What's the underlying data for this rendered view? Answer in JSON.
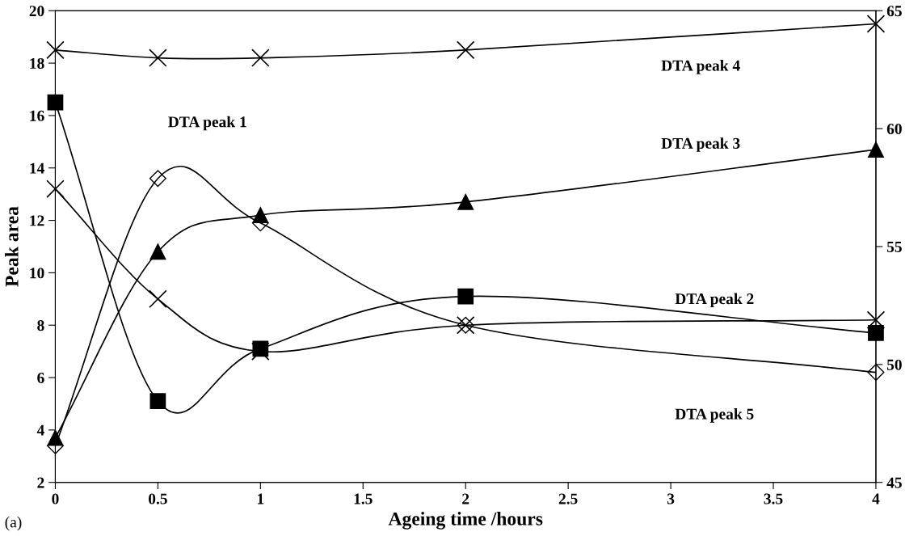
{
  "chart_data": {
    "type": "line",
    "xlabel": "Ageing time /hours",
    "ylabel": "Peak area",
    "x": [
      0,
      0.5,
      1,
      2,
      4
    ],
    "series": [
      {
        "color": "#000000",
        "marker": "cross",
        "values": [
          18.5,
          18.2,
          18.2,
          18.5,
          19.5
        ]
      },
      {
        "color": "#000000",
        "marker": "square",
        "values": [
          16.5,
          5.1,
          7.1,
          9.1,
          7.7
        ]
      },
      {
        "color": "#000000",
        "marker": "triangle",
        "values": [
          3.7,
          10.8,
          12.2,
          12.7,
          14.7
        ]
      },
      {
        "color": "#000000",
        "marker": "diamond",
        "values": [
          3.4,
          13.6,
          11.9,
          8.0,
          6.2
        ]
      },
      {
        "color": "#000000",
        "marker": "cross",
        "values": [
          13.2,
          9.0,
          7.0,
          8.0,
          8.2
        ]
      }
    ],
    "xlim": [
      0,
      4
    ],
    "xticks": [
      0,
      0.5,
      1,
      1.5,
      2,
      2.5,
      3,
      3.5,
      4
    ],
    "ylim": [
      2,
      20
    ],
    "yticks": [
      2,
      4,
      6,
      8,
      10,
      12,
      14,
      16,
      18,
      20
    ],
    "y2lim": [
      45,
      65
    ],
    "y2ticks": [
      45,
      50,
      55,
      60,
      65
    ],
    "grid": false,
    "legend": false,
    "line_style": "solid",
    "annotations": [
      "DTA peak 1",
      "DTA peak 4",
      "DTA peak 3",
      "DTA peak 2",
      "DTA peak 5",
      "(a)"
    ]
  }
}
